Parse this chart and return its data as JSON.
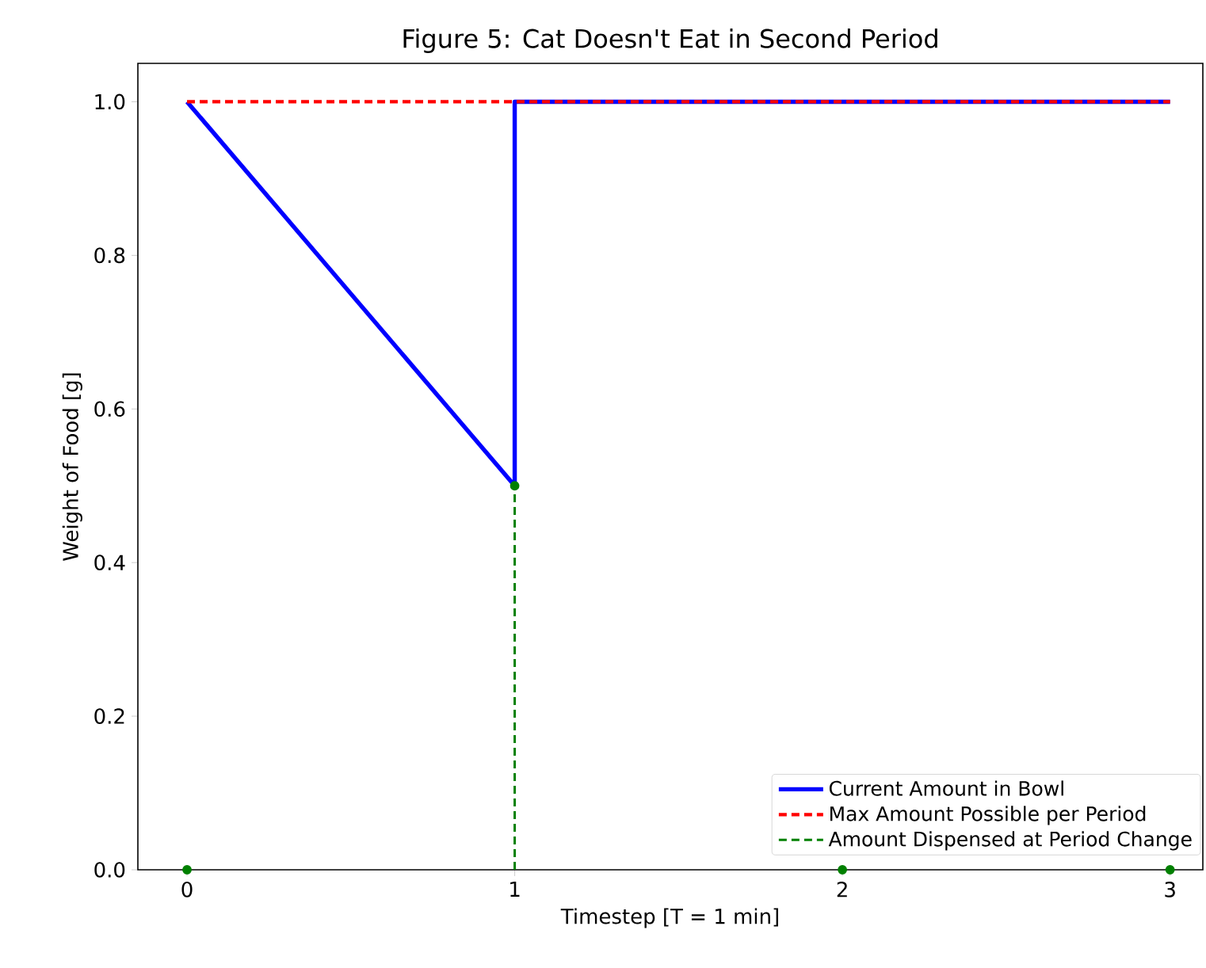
{
  "chart_data": {
    "type": "line",
    "title": "Figure 5: Cat Doesn't Eat in Second Period",
    "xlabel": "Timestep [T = 1 min]",
    "ylabel": "Weight of Food [g]",
    "xlim": [
      -0.15,
      3.1
    ],
    "ylim": [
      0,
      1.05
    ],
    "xticks": [
      0,
      1,
      2,
      3
    ],
    "yticks": [
      {
        "value": 0,
        "label": "0.0"
      },
      {
        "value": 0.2,
        "label": "0.2"
      },
      {
        "value": 0.4,
        "label": "0.4"
      },
      {
        "value": 0.6,
        "label": "0.6"
      },
      {
        "value": 0.8,
        "label": "0.8"
      },
      {
        "value": 1.0,
        "label": "1.0"
      }
    ],
    "legend": "bottom right",
    "series": [
      {
        "name": "Current Amount in Bowl",
        "color": "#0000ff",
        "x": [
          0,
          1,
          1,
          3
        ],
        "values": [
          1,
          0.5,
          1,
          1
        ],
        "line_style": "solid",
        "marker": "none"
      },
      {
        "name": "Max Amount Possible per Period",
        "color": "#ff0000",
        "x": [
          0,
          3
        ],
        "values": [
          1,
          1
        ],
        "line_style": "dashed",
        "marker": "none"
      },
      {
        "name": "Amount Dispensed at Period Change",
        "type": "lollipop",
        "color": "#008000",
        "x": [
          0,
          1,
          2,
          3
        ],
        "values": [
          0,
          0.5,
          0,
          0
        ],
        "line_style": "dashed",
        "marker": "circle"
      }
    ]
  }
}
